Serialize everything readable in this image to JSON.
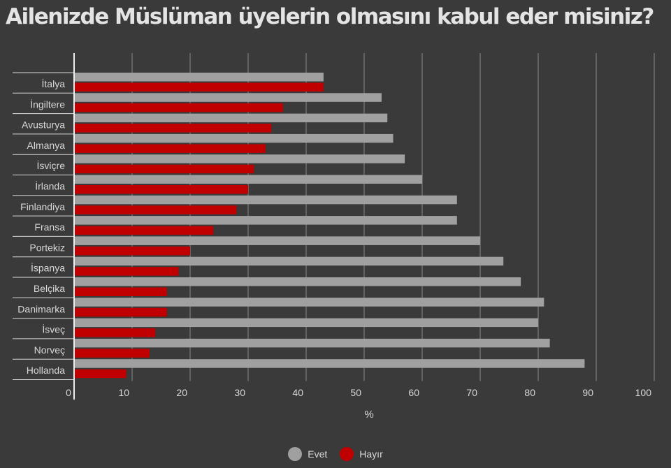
{
  "title": "Ailenizde Müslüman üyelerin olmasını kabul eder misiniz?",
  "colors": {
    "evet": "#a0a0a0",
    "hayir": "#c00000",
    "grid": "#8a8a8a",
    "text": "#d8d8d8"
  },
  "chart_data": {
    "type": "bar",
    "orientation": "horizontal",
    "categories": [
      "İtalya",
      "İngiltere",
      "Avusturya",
      "Almanya",
      "İsviçre",
      "İrlanda",
      "Finlandiya",
      "Fransa",
      "Portekiz",
      "İspanya",
      "Belçika",
      "Danimarka",
      "İsveç",
      "Norveç",
      "Hollanda"
    ],
    "series": [
      {
        "name": "Evet",
        "values": [
          43,
          53,
          54,
          55,
          57,
          60,
          66,
          66,
          70,
          74,
          77,
          81,
          80,
          82,
          88
        ]
      },
      {
        "name": "Hayır",
        "values": [
          43,
          36,
          34,
          33,
          31,
          30,
          28,
          24,
          20,
          18,
          16,
          16,
          14,
          13,
          9
        ]
      }
    ],
    "xlabel": "%",
    "xlim": [
      0,
      100
    ],
    "xticks": [
      0,
      10,
      20,
      30,
      40,
      50,
      60,
      70,
      80,
      90,
      100
    ],
    "grid": true,
    "legend": "bottom-center"
  }
}
